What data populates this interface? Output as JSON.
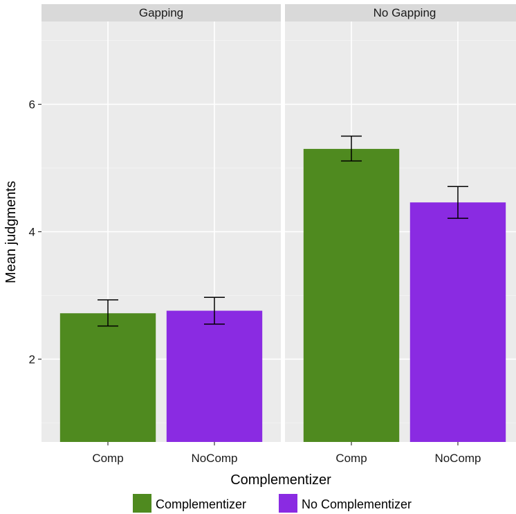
{
  "chart_data": {
    "type": "bar",
    "title": "",
    "xlabel": "Complementizer",
    "ylabel": "Mean judgments",
    "ylim": [
      0.7,
      7.3
    ],
    "yticks": [
      2,
      4,
      6
    ],
    "grid": true,
    "legend_position": "bottom",
    "categories": [
      "Comp",
      "NoComp"
    ],
    "panels": [
      {
        "label": "Gapping",
        "bars": [
          {
            "category": "Comp",
            "series": "Complementizer",
            "value": 2.72,
            "error_low": 2.52,
            "error_high": 2.93
          },
          {
            "category": "NoComp",
            "series": "No Complementizer",
            "value": 2.76,
            "error_low": 2.55,
            "error_high": 2.97
          }
        ]
      },
      {
        "label": "No Gapping",
        "bars": [
          {
            "category": "Comp",
            "series": "Complementizer",
            "value": 5.3,
            "error_low": 5.11,
            "error_high": 5.5
          },
          {
            "category": "NoComp",
            "series": "No Complementizer",
            "value": 4.46,
            "error_low": 4.21,
            "error_high": 4.71
          }
        ]
      }
    ],
    "legend": [
      {
        "name": "Complementizer",
        "color": "#4f8a1f"
      },
      {
        "name": "No Complementizer",
        "color": "#8a2be2"
      }
    ]
  }
}
